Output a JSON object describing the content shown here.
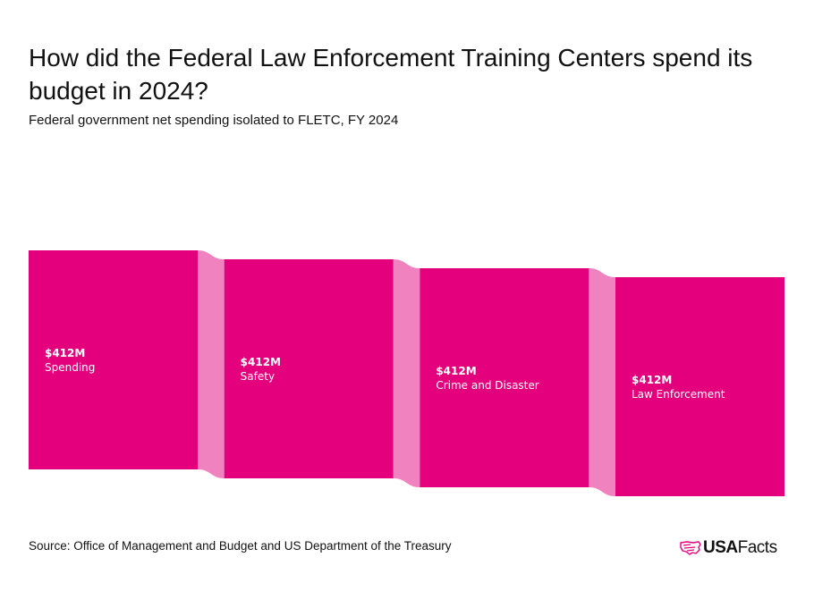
{
  "title": "How did the Federal Law Enforcement Training Centers spend its budget in 2024?",
  "subtitle": "Federal government net spending isolated to FLETC, FY 2024",
  "source": "Source: Office of Management and Budget and US Department of the Treasury",
  "logo": {
    "text_prefix": "USA",
    "text_suffix": "Facts",
    "icon": "us-flag-map-icon"
  },
  "colors": {
    "node": "#e4007c",
    "link": "#f082c0",
    "logo_icon": "#e4007c"
  },
  "chart_data": {
    "type": "sankey",
    "unit": "$M",
    "nodes": [
      {
        "id": "spending",
        "name": "Spending",
        "value": 412,
        "value_label": "$412M"
      },
      {
        "id": "safety",
        "name": "Safety",
        "value": 412,
        "value_label": "$412M"
      },
      {
        "id": "crime",
        "name": "Crime and Disaster",
        "value": 412,
        "value_label": "$412M"
      },
      {
        "id": "law",
        "name": "Law Enforcement",
        "value": 412,
        "value_label": "$412M"
      }
    ],
    "links": [
      {
        "source": "spending",
        "target": "safety",
        "value": 412
      },
      {
        "source": "safety",
        "target": "crime",
        "value": 412
      },
      {
        "source": "crime",
        "target": "law",
        "value": 412
      }
    ]
  }
}
